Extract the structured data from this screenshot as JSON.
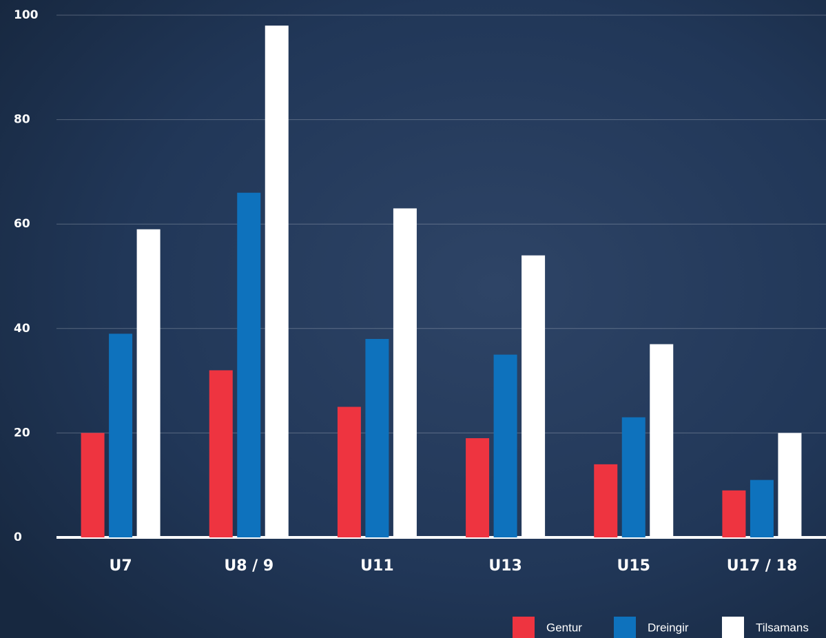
{
  "chart_data": {
    "type": "bar",
    "categories": [
      "U7",
      "U8 / 9",
      "U11",
      "U13",
      "U15",
      "U17 / 18"
    ],
    "series": [
      {
        "name": "Gentur",
        "color": "#ee3440",
        "values": [
          20,
          32,
          25,
          19,
          14,
          9
        ]
      },
      {
        "name": "Dreingir",
        "color": "#0e72bd",
        "values": [
          39,
          66,
          38,
          35,
          23,
          11
        ]
      },
      {
        "name": "Tilsamans",
        "color": "#ffffff",
        "values": [
          59,
          98,
          63,
          54,
          37,
          20
        ]
      }
    ],
    "ylim": [
      0,
      100
    ],
    "yticks": [
      0,
      20,
      40,
      60,
      80,
      100
    ],
    "grid": true,
    "legend": "bottom-right"
  }
}
